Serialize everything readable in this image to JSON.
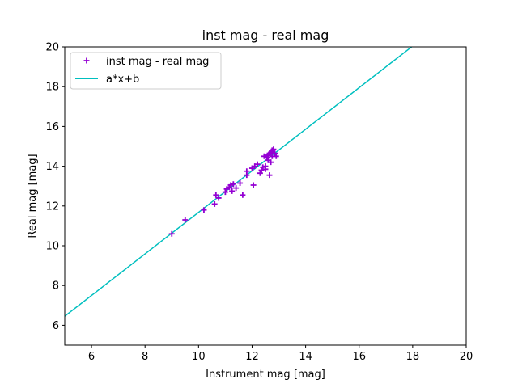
{
  "chart_data": {
    "type": "scatter",
    "title": "inst mag - real mag",
    "xlabel": "Instrument mag [mag]",
    "ylabel": "Real mag [mag]",
    "xlim": [
      5,
      20
    ],
    "ylim": [
      5,
      20
    ],
    "xticks": [
      6,
      8,
      10,
      12,
      14,
      16,
      18,
      20
    ],
    "yticks": [
      6,
      8,
      10,
      12,
      14,
      16,
      18,
      20
    ],
    "grid": false,
    "legend_position": "upper-left",
    "series": [
      {
        "name": "inst mag - real mag",
        "kind": "scatter",
        "marker": "plus",
        "color": "#9400d3",
        "x": [
          9.0,
          9.5,
          10.2,
          10.6,
          10.65,
          10.75,
          11.0,
          11.05,
          11.15,
          11.2,
          11.25,
          11.3,
          11.4,
          11.55,
          11.65,
          11.8,
          11.8,
          12.0,
          12.05,
          12.1,
          12.2,
          12.3,
          12.35,
          12.4,
          12.45,
          12.5,
          12.5,
          12.55,
          12.6,
          12.6,
          12.65,
          12.65,
          12.7,
          12.7,
          12.75,
          12.75,
          12.8,
          12.85,
          12.9
        ],
        "y": [
          10.6,
          11.3,
          11.8,
          12.1,
          12.55,
          12.4,
          12.7,
          12.85,
          12.95,
          13.05,
          12.75,
          13.1,
          12.9,
          13.15,
          12.55,
          13.55,
          13.75,
          13.9,
          13.05,
          14.0,
          14.1,
          13.65,
          13.8,
          13.95,
          14.5,
          14.0,
          13.85,
          14.45,
          14.3,
          14.55,
          13.55,
          14.65,
          14.2,
          14.7,
          14.5,
          14.8,
          14.85,
          14.65,
          14.5
        ]
      },
      {
        "name": "a*x+b",
        "kind": "line",
        "color": "#00bfbf",
        "a": 1.045,
        "b": 1.23,
        "x_range": [
          5,
          20
        ]
      }
    ]
  }
}
